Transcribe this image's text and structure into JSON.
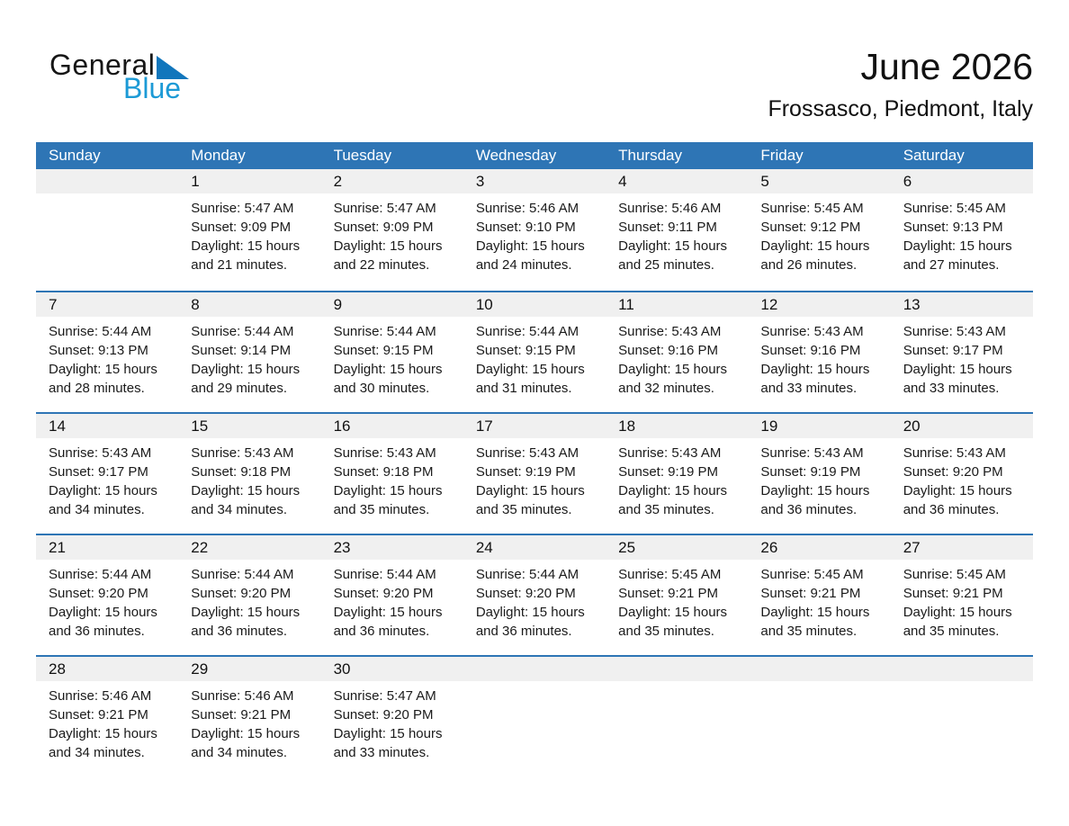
{
  "logo": {
    "word1": "General",
    "word2": "Blue",
    "triangle_color": "#1176BC",
    "blue_color": "#1C9AD6"
  },
  "header": {
    "title": "June 2026",
    "location": "Frossasco, Piedmont, Italy"
  },
  "colors": {
    "header_blue": "#2E75B5",
    "stripe_gray": "#F0F0F0",
    "text_dark": "#1A1A1A"
  },
  "labels": {
    "sunrise": "Sunrise:",
    "sunset": "Sunset:",
    "daylight": "Daylight:"
  },
  "weekdays": [
    "Sunday",
    "Monday",
    "Tuesday",
    "Wednesday",
    "Thursday",
    "Friday",
    "Saturday"
  ],
  "weeks": [
    [
      null,
      {
        "day": "1",
        "sunrise": "5:47 AM",
        "sunset": "9:09 PM",
        "daylight": "15 hours and 21 minutes."
      },
      {
        "day": "2",
        "sunrise": "5:47 AM",
        "sunset": "9:09 PM",
        "daylight": "15 hours and 22 minutes."
      },
      {
        "day": "3",
        "sunrise": "5:46 AM",
        "sunset": "9:10 PM",
        "daylight": "15 hours and 24 minutes."
      },
      {
        "day": "4",
        "sunrise": "5:46 AM",
        "sunset": "9:11 PM",
        "daylight": "15 hours and 25 minutes."
      },
      {
        "day": "5",
        "sunrise": "5:45 AM",
        "sunset": "9:12 PM",
        "daylight": "15 hours and 26 minutes."
      },
      {
        "day": "6",
        "sunrise": "5:45 AM",
        "sunset": "9:13 PM",
        "daylight": "15 hours and 27 minutes."
      }
    ],
    [
      {
        "day": "7",
        "sunrise": "5:44 AM",
        "sunset": "9:13 PM",
        "daylight": "15 hours and 28 minutes."
      },
      {
        "day": "8",
        "sunrise": "5:44 AM",
        "sunset": "9:14 PM",
        "daylight": "15 hours and 29 minutes."
      },
      {
        "day": "9",
        "sunrise": "5:44 AM",
        "sunset": "9:15 PM",
        "daylight": "15 hours and 30 minutes."
      },
      {
        "day": "10",
        "sunrise": "5:44 AM",
        "sunset": "9:15 PM",
        "daylight": "15 hours and 31 minutes."
      },
      {
        "day": "11",
        "sunrise": "5:43 AM",
        "sunset": "9:16 PM",
        "daylight": "15 hours and 32 minutes."
      },
      {
        "day": "12",
        "sunrise": "5:43 AM",
        "sunset": "9:16 PM",
        "daylight": "15 hours and 33 minutes."
      },
      {
        "day": "13",
        "sunrise": "5:43 AM",
        "sunset": "9:17 PM",
        "daylight": "15 hours and 33 minutes."
      }
    ],
    [
      {
        "day": "14",
        "sunrise": "5:43 AM",
        "sunset": "9:17 PM",
        "daylight": "15 hours and 34 minutes."
      },
      {
        "day": "15",
        "sunrise": "5:43 AM",
        "sunset": "9:18 PM",
        "daylight": "15 hours and 34 minutes."
      },
      {
        "day": "16",
        "sunrise": "5:43 AM",
        "sunset": "9:18 PM",
        "daylight": "15 hours and 35 minutes."
      },
      {
        "day": "17",
        "sunrise": "5:43 AM",
        "sunset": "9:19 PM",
        "daylight": "15 hours and 35 minutes."
      },
      {
        "day": "18",
        "sunrise": "5:43 AM",
        "sunset": "9:19 PM",
        "daylight": "15 hours and 35 minutes."
      },
      {
        "day": "19",
        "sunrise": "5:43 AM",
        "sunset": "9:19 PM",
        "daylight": "15 hours and 36 minutes."
      },
      {
        "day": "20",
        "sunrise": "5:43 AM",
        "sunset": "9:20 PM",
        "daylight": "15 hours and 36 minutes."
      }
    ],
    [
      {
        "day": "21",
        "sunrise": "5:44 AM",
        "sunset": "9:20 PM",
        "daylight": "15 hours and 36 minutes."
      },
      {
        "day": "22",
        "sunrise": "5:44 AM",
        "sunset": "9:20 PM",
        "daylight": "15 hours and 36 minutes."
      },
      {
        "day": "23",
        "sunrise": "5:44 AM",
        "sunset": "9:20 PM",
        "daylight": "15 hours and 36 minutes."
      },
      {
        "day": "24",
        "sunrise": "5:44 AM",
        "sunset": "9:20 PM",
        "daylight": "15 hours and 36 minutes."
      },
      {
        "day": "25",
        "sunrise": "5:45 AM",
        "sunset": "9:21 PM",
        "daylight": "15 hours and 35 minutes."
      },
      {
        "day": "26",
        "sunrise": "5:45 AM",
        "sunset": "9:21 PM",
        "daylight": "15 hours and 35 minutes."
      },
      {
        "day": "27",
        "sunrise": "5:45 AM",
        "sunset": "9:21 PM",
        "daylight": "15 hours and 35 minutes."
      }
    ],
    [
      {
        "day": "28",
        "sunrise": "5:46 AM",
        "sunset": "9:21 PM",
        "daylight": "15 hours and 34 minutes."
      },
      {
        "day": "29",
        "sunrise": "5:46 AM",
        "sunset": "9:21 PM",
        "daylight": "15 hours and 34 minutes."
      },
      {
        "day": "30",
        "sunrise": "5:47 AM",
        "sunset": "9:20 PM",
        "daylight": "15 hours and 33 minutes."
      },
      null,
      null,
      null,
      null
    ]
  ]
}
